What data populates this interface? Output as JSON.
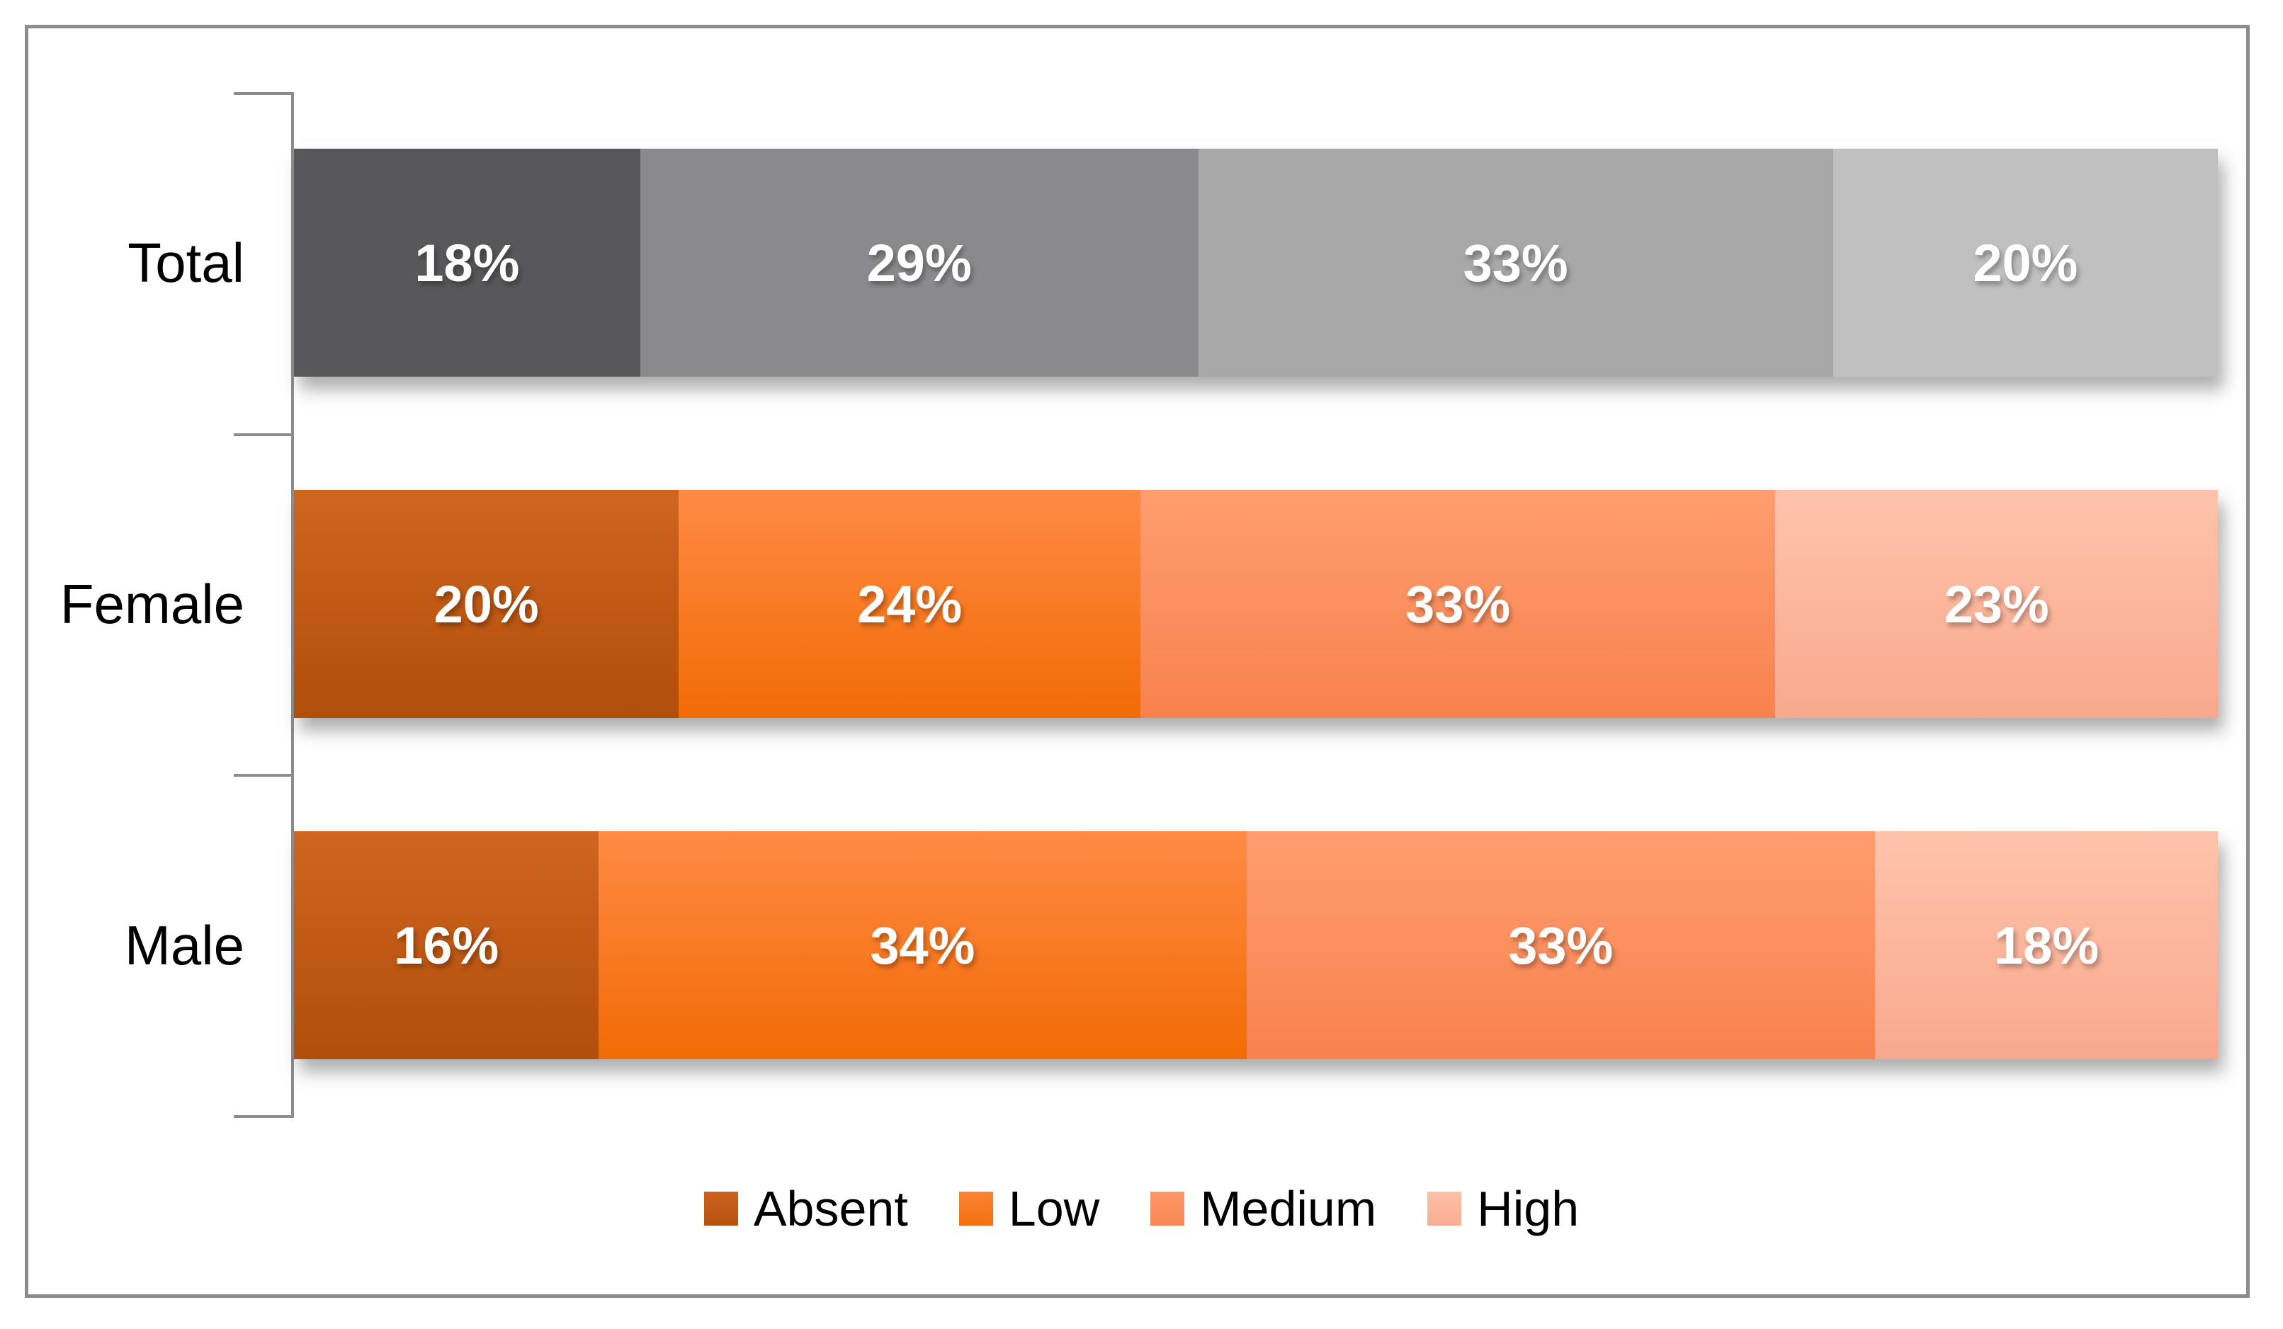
{
  "chart_data": {
    "type": "bar",
    "orientation": "horizontal-stacked",
    "title": "",
    "xlabel": "",
    "ylabel": "",
    "xlim": [
      0,
      100
    ],
    "grid": false,
    "legend_position": "bottom",
    "categories": [
      "Total",
      "Female",
      "Male"
    ],
    "series": [
      {
        "name": "Absent",
        "values": [
          18,
          20,
          16
        ]
      },
      {
        "name": "Low",
        "values": [
          29,
          24,
          34
        ]
      },
      {
        "name": "Medium",
        "values": [
          33,
          33,
          33
        ]
      },
      {
        "name": "High",
        "values": [
          20,
          23,
          18
        ]
      }
    ],
    "value_labels": [
      [
        "18%",
        "29%",
        "33%",
        "20%"
      ],
      [
        "20%",
        "24%",
        "33%",
        "23%"
      ],
      [
        "16%",
        "34%",
        "33%",
        "18%"
      ]
    ],
    "legend": [
      "Absent",
      "Low",
      "Medium",
      "High"
    ],
    "colors": {
      "axis": "#8C8C8C",
      "frame_border": "#8C8C8C",
      "gray_segments": [
        "#58585A",
        "#8A8A8C",
        "#A8A8A8",
        "#C0C0C0"
      ],
      "orange_segments_top": [
        "#D0651F",
        "#FF8A45",
        "#FF9D70",
        "#FFC3AC"
      ],
      "orange_segments_bottom": [
        "#B04E0B",
        "#F26B05",
        "#F8824E",
        "#F8A98D"
      ],
      "legend_marker_top": [
        "#CC6220",
        "#FB8434",
        "#FD9766",
        "#FDC0A8"
      ],
      "legend_marker_bottom": [
        "#B5520E",
        "#F3700F",
        "#FA8655",
        "#F9AD92"
      ],
      "value_label_text": "#FFFFFF",
      "category_text": "#000000"
    }
  }
}
